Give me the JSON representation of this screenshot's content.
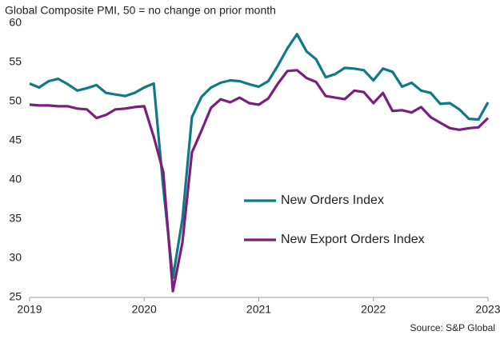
{
  "chart_data": {
    "type": "line",
    "title": "Global  Composite PMI, 50 = no change on prior month",
    "source": "Source: S&P Global",
    "categories": [
      "2019",
      null,
      null,
      null,
      null,
      null,
      null,
      null,
      null,
      null,
      null,
      null,
      "2020",
      null,
      null,
      null,
      null,
      null,
      null,
      null,
      null,
      null,
      null,
      null,
      "2021",
      null,
      null,
      null,
      null,
      null,
      null,
      null,
      null,
      null,
      null,
      null,
      "2022",
      null,
      null,
      null,
      null,
      null,
      null,
      null,
      null,
      null,
      null,
      null,
      "2023"
    ],
    "series": [
      {
        "name": "New Orders Index",
        "color": "#0e7a86",
        "values": [
          52.3,
          51.8,
          52.6,
          52.9,
          52.2,
          51.4,
          51.7,
          52.1,
          51.1,
          50.9,
          50.7,
          51.1,
          51.8,
          52.3,
          39.0,
          27.5,
          35.0,
          48.0,
          50.6,
          51.8,
          52.4,
          52.7,
          52.6,
          52.2,
          51.9,
          52.6,
          54.6,
          56.8,
          58.6,
          56.4,
          55.4,
          53.1,
          53.5,
          54.3,
          54.2,
          54.0,
          52.7,
          54.2,
          53.8,
          51.9,
          52.4,
          51.4,
          51.1,
          49.7,
          49.8,
          49.0,
          47.8,
          47.7,
          49.9
        ]
      },
      {
        "name": "New Export Orders Index",
        "color": "#7a1f7e",
        "values": [
          49.6,
          49.5,
          49.5,
          49.4,
          49.4,
          49.1,
          49.0,
          47.9,
          48.3,
          49.0,
          49.1,
          49.3,
          49.4,
          45.5,
          41.0,
          25.8,
          32.0,
          43.5,
          46.3,
          49.2,
          50.3,
          49.9,
          50.5,
          49.8,
          49.6,
          50.4,
          52.3,
          53.9,
          54.0,
          53.0,
          52.5,
          50.7,
          50.5,
          50.3,
          51.4,
          51.2,
          49.8,
          51.1,
          48.8,
          48.9,
          48.6,
          49.3,
          48.0,
          47.3,
          46.6,
          46.4,
          46.6,
          46.7,
          47.9
        ]
      }
    ],
    "ylim": [
      25,
      60
    ],
    "yticks": [
      25,
      30,
      35,
      40,
      45,
      50,
      55,
      60
    ],
    "grid": false,
    "legend": "center"
  }
}
